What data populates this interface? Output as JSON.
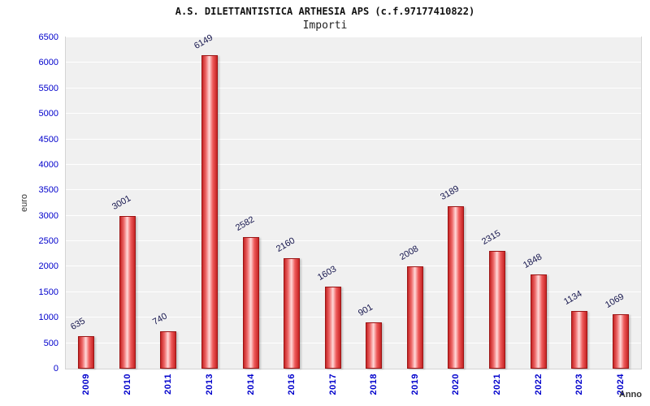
{
  "chart": {
    "title": "A.S. DILETTANTISTICA ARTHESIA APS (c.f.97177410822)",
    "subtitle": "Importi",
    "ylabel": "euro",
    "xlabel": "Anno"
  },
  "chart_data": {
    "type": "bar",
    "title": "A.S. DILETTANTISTICA ARTHESIA APS (c.f.97177410822)",
    "subtitle": "Importi",
    "xlabel": "Anno",
    "ylabel": "euro",
    "categories": [
      "2009",
      "2010",
      "2011",
      "2013",
      "2014",
      "2016",
      "2017",
      "2018",
      "2019",
      "2020",
      "2021",
      "2022",
      "2023",
      "2024"
    ],
    "values": [
      635,
      3001,
      740,
      6149,
      2582,
      2160,
      1603,
      901,
      2008,
      3189,
      2315,
      1848,
      1134,
      1069
    ],
    "ylim": [
      0,
      6500
    ],
    "ytick_step": 500,
    "grid": true,
    "legend": "none",
    "bar_color": "#d93030",
    "bar_border_color": "#9c1414",
    "tick_label_color": "#0000cc",
    "value_label_color": "#16164e",
    "plot_background": "#f0f0f0"
  }
}
